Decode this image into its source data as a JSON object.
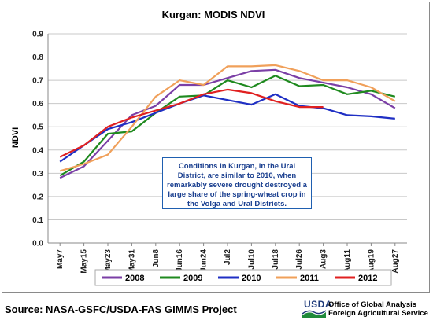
{
  "source_note": "Source:  NASA-GSFC/USDA-FAS GIMMS Project",
  "agency": {
    "logo_text": "USDA",
    "line1": "Office of Global Analysis",
    "line2": "Foreign Agricultural Service"
  },
  "annotation": "Conditions in Kurgan, in the Ural District, are similar to 2010, when remarkably severe drought destroyed a large share of the spring-wheat crop in the Volga and Ural Districts.",
  "chart_data": {
    "type": "line",
    "title": "Kurgan:  MODIS NDVI",
    "xlabel": "",
    "ylabel": "NDVI",
    "ylim": [
      0.0,
      0.9
    ],
    "yticks": [
      "0.0",
      "0.1",
      "0.2",
      "0.3",
      "0.4",
      "0.5",
      "0.6",
      "0.7",
      "0.8",
      "0.9"
    ],
    "grid": "horizontal",
    "legend_position": "bottom",
    "categories": [
      "May7",
      "May15",
      "May23",
      "May31",
      "Jun8",
      "Jun16",
      "Jun24",
      "Jul2",
      "Jul10",
      "Jul18",
      "Jul26",
      "Aug3",
      "Aug11",
      "Aug19",
      "Aug27"
    ],
    "series": [
      {
        "name": "2008",
        "color": "#7b3fa6",
        "values": [
          0.28,
          0.33,
          0.44,
          0.55,
          0.59,
          0.68,
          0.68,
          0.71,
          0.74,
          0.745,
          0.71,
          0.69,
          0.67,
          0.64,
          0.58
        ]
      },
      {
        "name": "2009",
        "color": "#1f8a1f",
        "values": [
          0.29,
          0.35,
          0.47,
          0.48,
          0.56,
          0.63,
          0.635,
          0.7,
          0.67,
          0.72,
          0.675,
          0.68,
          0.64,
          0.655,
          0.63
        ]
      },
      {
        "name": "2010",
        "color": "#1f2fc4",
        "values": [
          0.35,
          0.42,
          0.49,
          0.52,
          0.56,
          0.6,
          0.635,
          0.615,
          0.595,
          0.64,
          0.59,
          0.58,
          0.55,
          0.545,
          0.535
        ]
      },
      {
        "name": "2011",
        "color": "#f0a05a",
        "values": [
          0.31,
          0.34,
          0.38,
          0.5,
          0.63,
          0.7,
          0.68,
          0.76,
          0.76,
          0.765,
          0.74,
          0.7,
          0.7,
          0.67,
          0.61
        ]
      },
      {
        "name": "2012",
        "color": "#e02020",
        "values": [
          0.37,
          0.42,
          0.5,
          0.54,
          0.57,
          0.6,
          0.64,
          0.66,
          0.645,
          0.61,
          0.585,
          0.585,
          null,
          null,
          null
        ]
      }
    ]
  }
}
